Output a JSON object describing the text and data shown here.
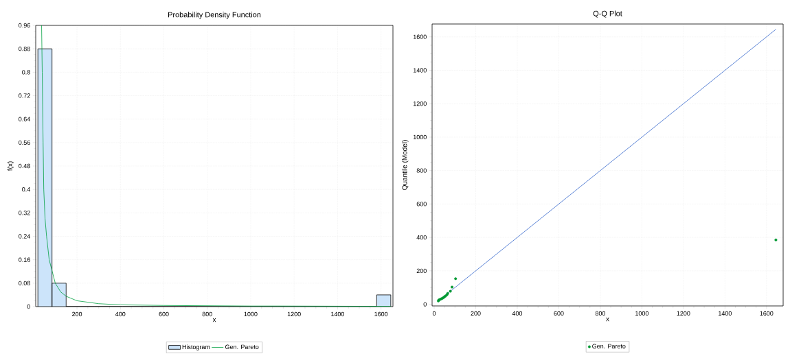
{
  "chart_data": [
    {
      "type": "histogram",
      "title": "Probability Density Function",
      "xlabel": "x",
      "ylabel": "f(x)",
      "xlim": [
        10,
        1655
      ],
      "ylim": [
        0,
        0.96
      ],
      "xticks": [
        200,
        400,
        600,
        800,
        1000,
        1200,
        1400,
        1600
      ],
      "yticks": [
        0,
        0.08,
        0.16,
        0.24,
        0.32,
        0.4,
        0.48,
        0.56,
        0.64,
        0.72,
        0.8,
        0.88,
        0.96
      ],
      "grid": true,
      "legend": "bottom",
      "series": [
        {
          "name": "Histogram",
          "color": "#cce4fa",
          "bins": [
            20,
            85,
            150,
            215,
            280,
            345,
            410,
            475,
            540,
            605,
            670,
            735,
            800,
            865,
            930,
            995,
            1060,
            1125,
            1190,
            1255,
            1320,
            1385,
            1450,
            1515,
            1580,
            1645
          ],
          "values": [
            0.88,
            0.08,
            0,
            0,
            0,
            0,
            0,
            0,
            0,
            0,
            0,
            0,
            0,
            0,
            0,
            0,
            0,
            0,
            0,
            0,
            0,
            0,
            0,
            0,
            0.04
          ]
        },
        {
          "name": "Gen. Pareto",
          "type": "line",
          "color": "#00a040",
          "x": [
            37,
            40,
            44,
            47,
            53,
            60,
            72,
            86,
            100,
            125,
            151,
            200,
            300,
            400,
            600,
            1000,
            1120,
            1645
          ],
          "values": [
            0.96,
            0.8,
            0.56,
            0.4,
            0.3,
            0.24,
            0.16,
            0.12,
            0.08,
            0.05,
            0.035,
            0.02,
            0.01,
            0.006,
            0.004,
            0.002,
            0.002,
            0.001
          ]
        }
      ]
    },
    {
      "type": "scatter",
      "title": "Q-Q Plot",
      "xlabel": "x",
      "ylabel": "Quantile (Model)",
      "xlim": [
        -10,
        1680
      ],
      "ylim": [
        -10,
        1677
      ],
      "xticks": [
        0,
        200,
        400,
        600,
        800,
        1000,
        1200,
        1400,
        1600
      ],
      "yticks": [
        0,
        200,
        400,
        600,
        800,
        1000,
        1200,
        1400,
        1600
      ],
      "grid": true,
      "legend": "bottom",
      "series": [
        {
          "type": "line",
          "color": "#3366cc",
          "x": [
            20,
            1645
          ],
          "values": [
            20,
            1645
          ]
        },
        {
          "name": "Gen. Pareto",
          "color": "#009933",
          "x": [
            20,
            22,
            25,
            30,
            35,
            40,
            45,
            50,
            55,
            62,
            65,
            78,
            86,
            103,
            1645
          ],
          "values": [
            20,
            25,
            27,
            30,
            33,
            36,
            40,
            45,
            50,
            58,
            65,
            78,
            103,
            153,
            385
          ]
        }
      ]
    }
  ]
}
